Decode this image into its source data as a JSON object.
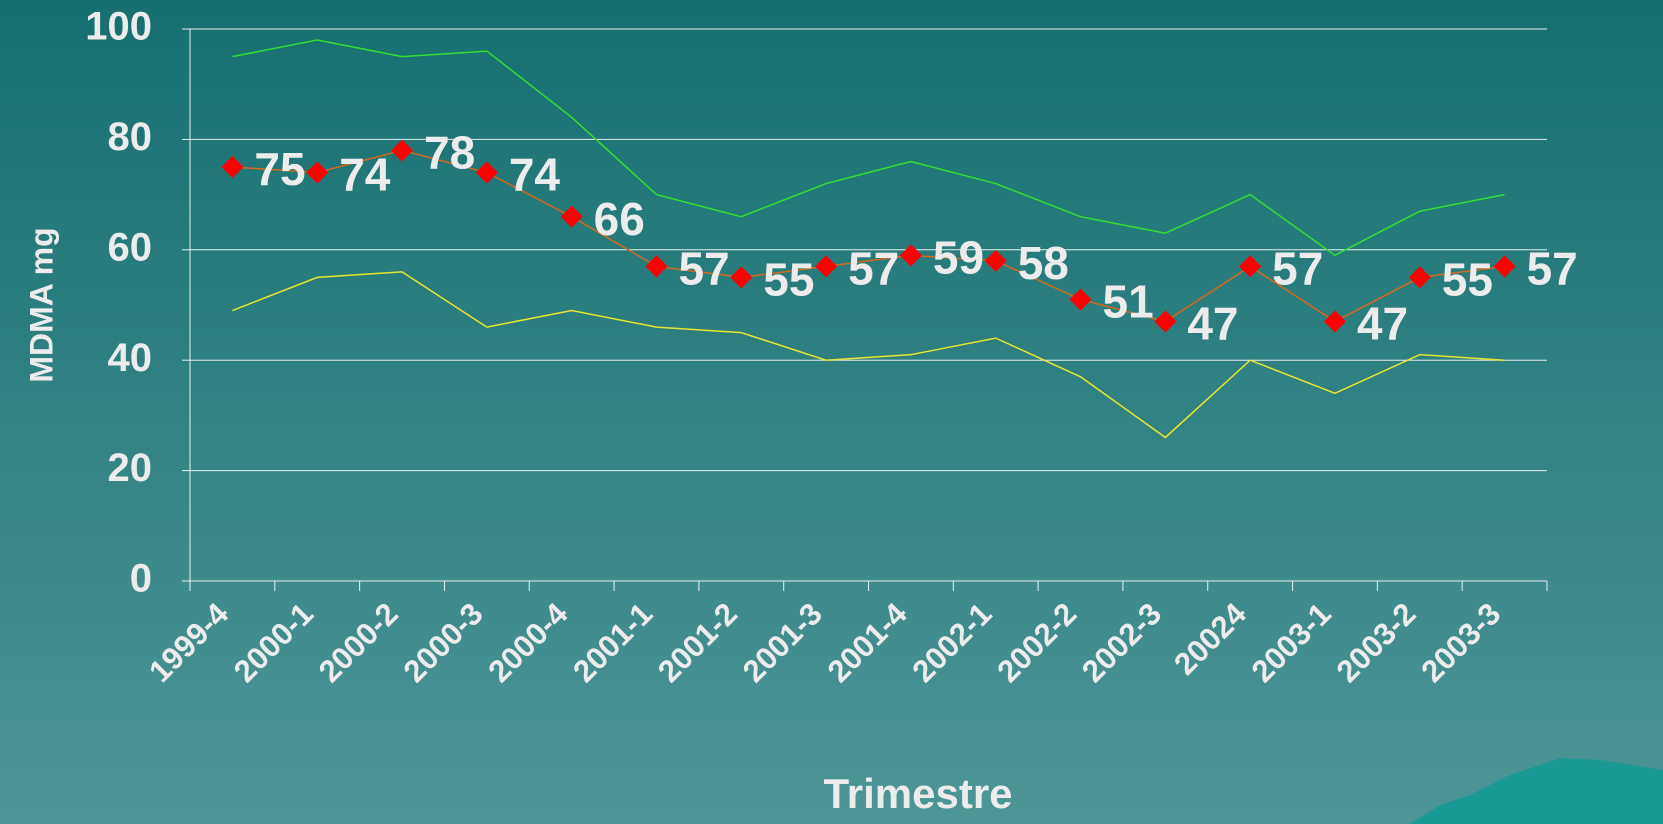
{
  "chart_data": {
    "type": "line",
    "x_label": "Trimestre",
    "y_label": "MDMA mg",
    "categories": [
      "1999-4",
      "2000-1",
      "2000-2",
      "2000-3",
      "2000-4",
      "2001-1",
      "2001-2",
      "2001-3",
      "2001-4",
      "2002-1",
      "2002-2",
      "2002-3",
      "20024",
      "2003-1",
      "2003-2",
      "2003-3"
    ],
    "series": [
      {
        "color": "#33dd33",
        "values": [
          95,
          98,
          95,
          96,
          84,
          70,
          66,
          72,
          76,
          72,
          66,
          63,
          70,
          59,
          67,
          70
        ]
      },
      {
        "color": "#ff0000",
        "line_color": "#d2691e",
        "markers": true,
        "data_labels": true,
        "values": [
          75,
          74,
          78,
          74,
          66,
          57,
          55,
          57,
          59,
          58,
          51,
          47,
          57,
          47,
          55,
          57
        ]
      },
      {
        "color": "#e6e633",
        "values": [
          49,
          55,
          56,
          46,
          49,
          46,
          45,
          40,
          41,
          44,
          37,
          26,
          40,
          34,
          41,
          40
        ]
      }
    ],
    "ylim": [
      0,
      100
    ],
    "yticks": [
      0,
      20,
      40,
      60,
      80,
      100
    ],
    "grid": true
  }
}
